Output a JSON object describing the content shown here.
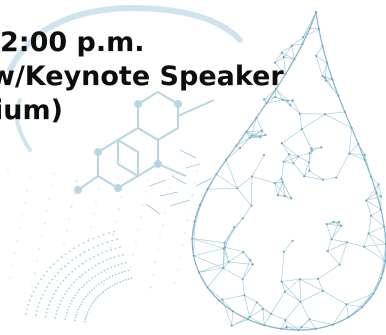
{
  "text": {
    "line_1": "2:00 p.m.",
    "line_2": "w/Keynote Speaker",
    "line_3": "ium)"
  },
  "colors": {
    "text": "#0d0d0d",
    "wire": "#7fb3c9",
    "wire_light": "#b7d6e2",
    "dots": "#9cc6d6",
    "background": "#ffffff"
  },
  "icons": {
    "drop": "water-drop-illustration",
    "molecule": "hexagon-molecule-illustration",
    "arc": "dotted-arc-decoration"
  }
}
